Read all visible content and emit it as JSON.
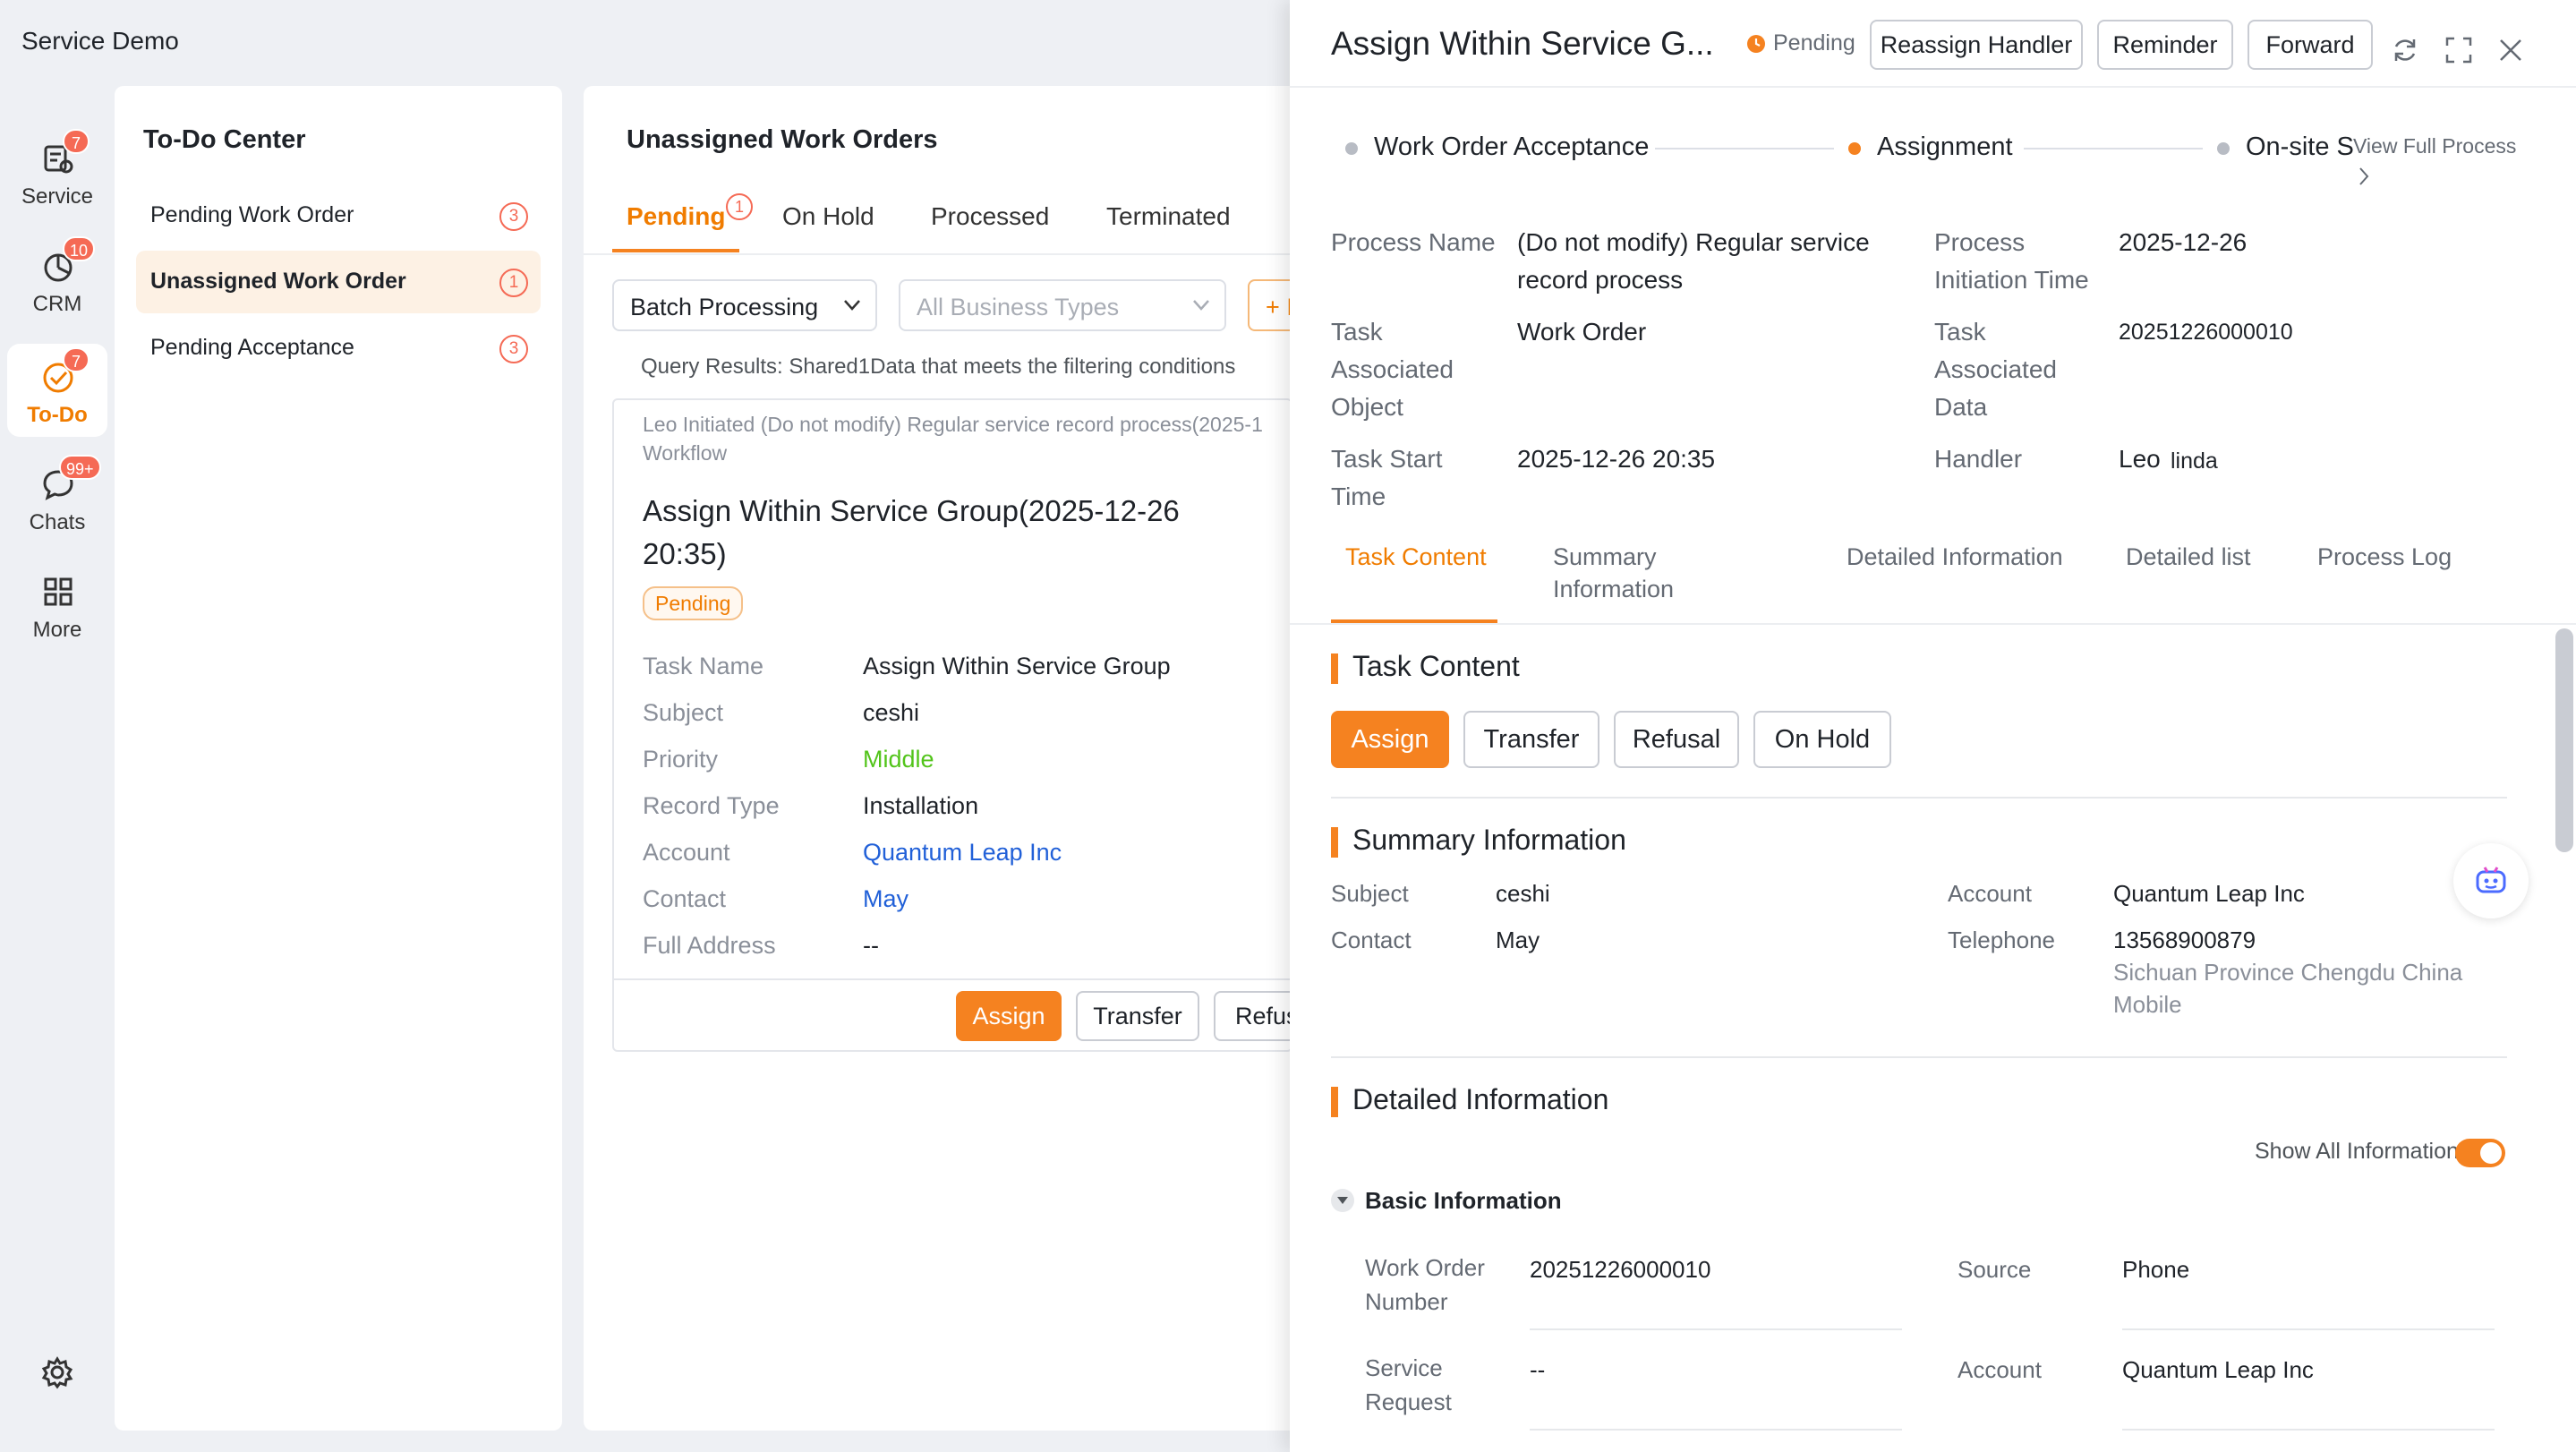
{
  "app": {
    "title": "Service Demo"
  },
  "nav": [
    {
      "label": "Service",
      "badge": "7",
      "icon": "service-icon"
    },
    {
      "label": "CRM",
      "badge": "10",
      "icon": "crm-icon"
    },
    {
      "label": "To-Do",
      "badge": "7",
      "icon": "todo-icon"
    },
    {
      "label": "Chats",
      "badge": "99+",
      "icon": "chat-icon"
    },
    {
      "label": "More",
      "badge": "",
      "icon": "grid-icon"
    }
  ],
  "todo": {
    "title": "To-Do Center",
    "items": [
      {
        "label": "Pending Work Order",
        "count": "3"
      },
      {
        "label": "Unassigned Work Order",
        "count": "1"
      },
      {
        "label": "Pending Acceptance",
        "count": "3"
      }
    ]
  },
  "orders": {
    "title": "Unassigned Work Orders",
    "tabs": [
      {
        "label": "Pending",
        "badge": "1"
      },
      {
        "label": "On Hold"
      },
      {
        "label": "Processed"
      },
      {
        "label": "Terminated"
      }
    ],
    "batch_label": "Batch Processing",
    "business_placeholder": "All Business Types",
    "add_label": "+ I",
    "query_results": "Query Results:  Shared1Data that meets the filtering conditions",
    "card": {
      "origin_line1": "Leo Initiated (Do not modify) Regular service record process(2025-1",
      "origin_line2": "Workflow",
      "title_line1": "Assign Within Service Group(2025-12-26",
      "title_line2": "20:35)",
      "status": "Pending",
      "fields": [
        {
          "k": "Task Name",
          "v": "Assign Within Service Group"
        },
        {
          "k": "Subject",
          "v": "ceshi"
        },
        {
          "k": "Priority",
          "v": "Middle"
        },
        {
          "k": "Record Type",
          "v": "Installation"
        },
        {
          "k": "Account",
          "v": "Quantum Leap Inc"
        },
        {
          "k": "Contact",
          "v": "May"
        },
        {
          "k": "Full Address",
          "v": "--"
        }
      ],
      "buttons": {
        "assign": "Assign",
        "transfer": "Transfer",
        "refusal": "Refus"
      }
    }
  },
  "detail": {
    "title": "Assign Within Service G...",
    "status": "Pending",
    "header_buttons": {
      "reassign": "Reassign Handler",
      "reminder": "Reminder",
      "forward": "Forward"
    },
    "steps": [
      "Work Order Acceptance",
      "Assignment",
      "On-site S"
    ],
    "view_full_process": "View Full Process",
    "info": {
      "process_name_k": "Process Name",
      "process_name_v1": "(Do not modify) Regular service",
      "process_name_v2": "record process",
      "init_time_k1": "Process",
      "init_time_k2": "Initiation Time",
      "init_time_v": "2025-12-26",
      "assoc_obj_k1": "Task",
      "assoc_obj_k2": "Associated",
      "assoc_obj_k3": "Object",
      "assoc_obj_v": "Work Order",
      "assoc_data_k1": "Task",
      "assoc_data_k2": "Associated",
      "assoc_data_k3": "Data",
      "assoc_data_v": "20251226000010",
      "start_k1": "Task Start",
      "start_k2": "Time",
      "start_v": "2025-12-26 20:35",
      "handler_k": "Handler",
      "handler_v1": "Leo",
      "handler_v2": "linda"
    },
    "tabs": {
      "task_content": "Task Content",
      "summary1": "Summary",
      "summary2": "Information",
      "detailed": "Detailed Information",
      "list": "Detailed list",
      "log": "Process Log"
    },
    "task_content": {
      "title": "Task Content",
      "assign": "Assign",
      "transfer": "Transfer",
      "refusal": "Refusal",
      "on_hold": "On Hold"
    },
    "summary": {
      "title": "Summary Information",
      "subject_k": "Subject",
      "subject_v": "ceshi",
      "contact_k": "Contact",
      "contact_v": "May",
      "account_k": "Account",
      "account_v": "Quantum Leap Inc",
      "tel_k": "Telephone",
      "tel_v": "13568900879",
      "tel_note1": "Sichuan Province Chengdu China",
      "tel_note2": "Mobile"
    },
    "detailed": {
      "title": "Detailed Information",
      "show_all": "Show All Information",
      "basic": "Basic Information",
      "won_k1": "Work Order",
      "won_k2": "Number",
      "won_v": "20251226000010",
      "source_k": "Source",
      "source_v": "Phone",
      "sr_k1": "Service",
      "sr_k2": "Request",
      "sr_v": "--",
      "account_k": "Account",
      "account_v": "Quantum Leap Inc"
    }
  },
  "colors": {
    "accent": "#f58220",
    "link": "#2160d8",
    "badge": "#f56a55",
    "priority": "#52c41a"
  }
}
